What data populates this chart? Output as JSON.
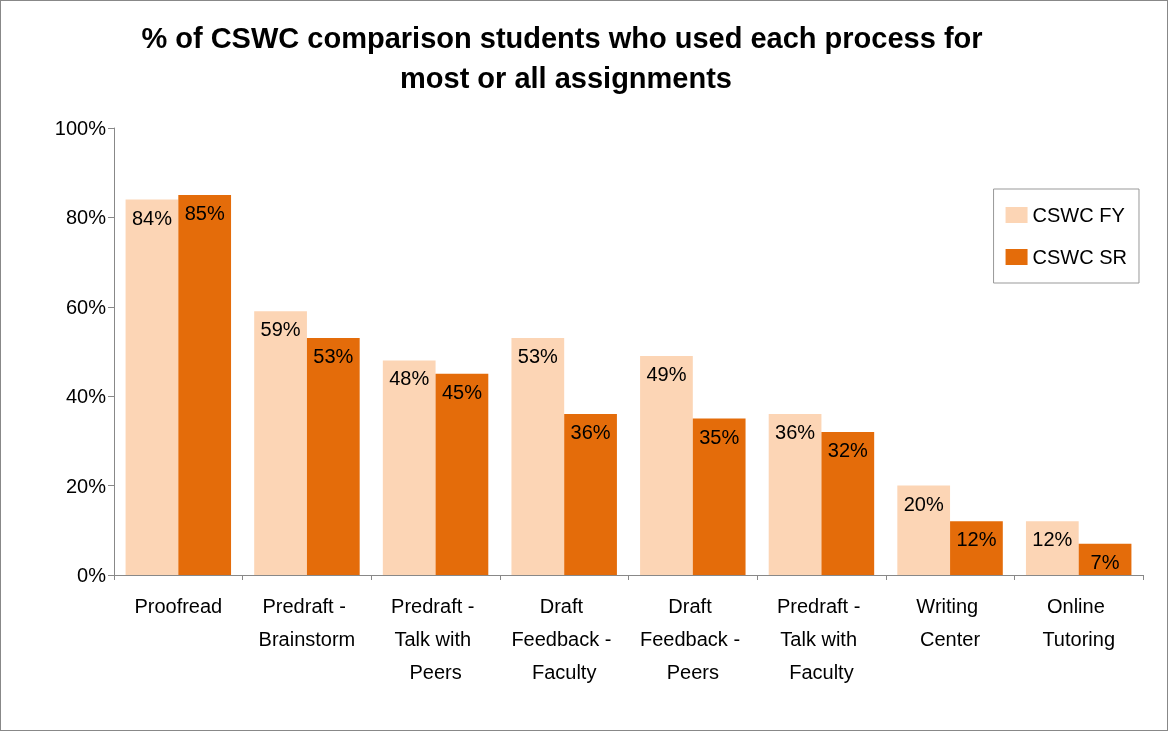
{
  "chart_data": {
    "type": "bar",
    "title": "% of CSWC comparison students who used each process for most or all assignments",
    "categories": [
      "Proofread",
      "Predraft - Brainstorm",
      "Predraft - Talk with Peers",
      "Draft Feedback - Faculty",
      "Draft Feedback - Peers",
      "Predraft - Talk with Faculty",
      "Writing Center",
      "Online Tutoring"
    ],
    "series": [
      {
        "name": "CSWC FY",
        "color": "#fcd5b5",
        "values": [
          84,
          59,
          48,
          53,
          49,
          36,
          20,
          12
        ],
        "value_labels": [
          "84%",
          "59%",
          "48%",
          "53%",
          "49%",
          "36%",
          "20%",
          "12%"
        ]
      },
      {
        "name": "CSWC SR",
        "color": "#e46c0a",
        "values": [
          85,
          53,
          45,
          36,
          35,
          32,
          12,
          7
        ],
        "value_labels": [
          "85%",
          "53%",
          "45%",
          "36%",
          "35%",
          "32%",
          "12%",
          "7%"
        ]
      }
    ],
    "ylim": [
      0,
      100
    ],
    "yticks": [
      {
        "value": 0,
        "label": "0%"
      },
      {
        "value": 20,
        "label": "20%"
      },
      {
        "value": 40,
        "label": "40%"
      },
      {
        "value": 60,
        "label": "60%"
      },
      {
        "value": 80,
        "label": "80%"
      },
      {
        "value": 100,
        "label": "100%"
      }
    ],
    "grid": false,
    "legend": "right"
  }
}
